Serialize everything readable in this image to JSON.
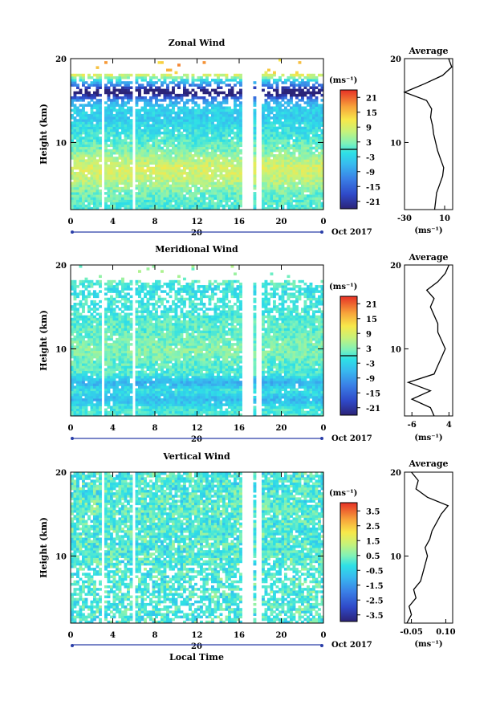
{
  "figure": {
    "date_label": "Oct 2017",
    "day_label": "20",
    "xlabel": "Local Time"
  },
  "chart_data": [
    {
      "type": "heatmap",
      "title": "Zonal Wind",
      "ylabel": "Height (km)",
      "x_ticks": [
        "0",
        "4",
        "8",
        "12",
        "16",
        "20",
        "0"
      ],
      "y_ticks": [
        "10",
        "20"
      ],
      "xlim": [
        0,
        24
      ],
      "ylim": [
        2,
        20
      ],
      "data_gaps_local_time": [
        [
          2.3,
          2.5
        ],
        [
          2.9,
          3.1
        ],
        [
          5.8,
          6.2
        ],
        [
          16.2,
          17.2
        ],
        [
          17.6,
          18.0
        ]
      ],
      "colorbar": {
        "unit": "(ms⁻¹)",
        "ticks": [
          "21",
          "15",
          "9",
          "3",
          "-3",
          "-9",
          "-15",
          "-21"
        ],
        "range": [
          -24,
          24
        ],
        "zero_contour": true
      },
      "average_profile": {
        "title": "Average",
        "xlabel": "(ms⁻¹)",
        "x_ticks": [
          "-30",
          "10"
        ],
        "xlim": [
          -30,
          18
        ],
        "y_ticks": [
          "10",
          "20"
        ],
        "height_km": [
          2,
          3,
          4,
          5,
          6,
          7,
          8,
          9,
          10,
          11,
          12,
          13,
          14,
          15,
          16,
          17,
          18,
          19,
          20
        ],
        "values": [
          0,
          1,
          2,
          5,
          8,
          9,
          6,
          3,
          1,
          -1,
          -2,
          -4,
          -3,
          -8,
          -30,
          -10,
          8,
          17,
          14
        ]
      }
    },
    {
      "type": "heatmap",
      "title": "Meridional Wind",
      "ylabel": "Height (km)",
      "x_ticks": [
        "0",
        "4",
        "8",
        "12",
        "16",
        "20",
        "0"
      ],
      "y_ticks": [
        "10",
        "20"
      ],
      "xlim": [
        0,
        24
      ],
      "ylim": [
        2,
        20
      ],
      "data_gaps_local_time": [
        [
          2.3,
          2.5
        ],
        [
          2.9,
          3.1
        ],
        [
          5.8,
          6.2
        ],
        [
          16.2,
          17.2
        ],
        [
          17.6,
          18.0
        ]
      ],
      "colorbar": {
        "unit": "(ms⁻¹)",
        "ticks": [
          "21",
          "15",
          "9",
          "3",
          "-3",
          "-9",
          "-15",
          "-21"
        ],
        "range": [
          -24,
          24
        ],
        "zero_contour": true
      },
      "average_profile": {
        "title": "Average",
        "xlabel": "(ms⁻¹)",
        "x_ticks": [
          "-6",
          "4"
        ],
        "xlim": [
          -8,
          5
        ],
        "y_ticks": [
          "10",
          "20"
        ],
        "height_km": [
          2,
          3,
          4,
          5,
          6,
          7,
          8,
          9,
          10,
          11,
          12,
          13,
          14,
          15,
          16,
          17,
          18,
          19,
          20
        ],
        "values": [
          0,
          -1,
          -6,
          -1,
          -7,
          0,
          1,
          2,
          3,
          2,
          1,
          1,
          0,
          -1,
          0,
          -2,
          1,
          3,
          4
        ]
      }
    },
    {
      "type": "heatmap",
      "title": "Vertical Wind",
      "ylabel": "Height (km)",
      "x_ticks": [
        "0",
        "4",
        "8",
        "12",
        "16",
        "20",
        "0"
      ],
      "y_ticks": [
        "10",
        "20"
      ],
      "xlim": [
        0,
        24
      ],
      "ylim": [
        2,
        20
      ],
      "data_gaps_local_time": [
        [
          2.3,
          2.5
        ],
        [
          2.9,
          3.1
        ],
        [
          5.8,
          6.2
        ],
        [
          16.2,
          17.2
        ],
        [
          17.6,
          18.0
        ]
      ],
      "colorbar": {
        "unit": "(ms⁻¹)",
        "ticks": [
          "3.5",
          "2.5",
          "1.5",
          "0.5",
          "-0.5",
          "-1.5",
          "-2.5",
          "-3.5"
        ],
        "range": [
          -4,
          4
        ],
        "zero_contour": false
      },
      "average_profile": {
        "title": "Average",
        "xlabel": "(ms⁻¹)",
        "x_ticks": [
          "-0.05",
          "0.10"
        ],
        "xlim": [
          -0.08,
          0.13
        ],
        "y_ticks": [
          "10",
          "20"
        ],
        "height_km": [
          2,
          3,
          4,
          5,
          6,
          7,
          8,
          9,
          10,
          11,
          12,
          13,
          14,
          15,
          16,
          17,
          18,
          19,
          20
        ],
        "values": [
          -0.07,
          -0.05,
          -0.06,
          -0.03,
          -0.04,
          -0.01,
          0.0,
          0.01,
          0.02,
          0.01,
          0.03,
          0.04,
          0.06,
          0.08,
          0.11,
          0.02,
          -0.03,
          -0.02,
          -0.05
        ]
      }
    }
  ]
}
